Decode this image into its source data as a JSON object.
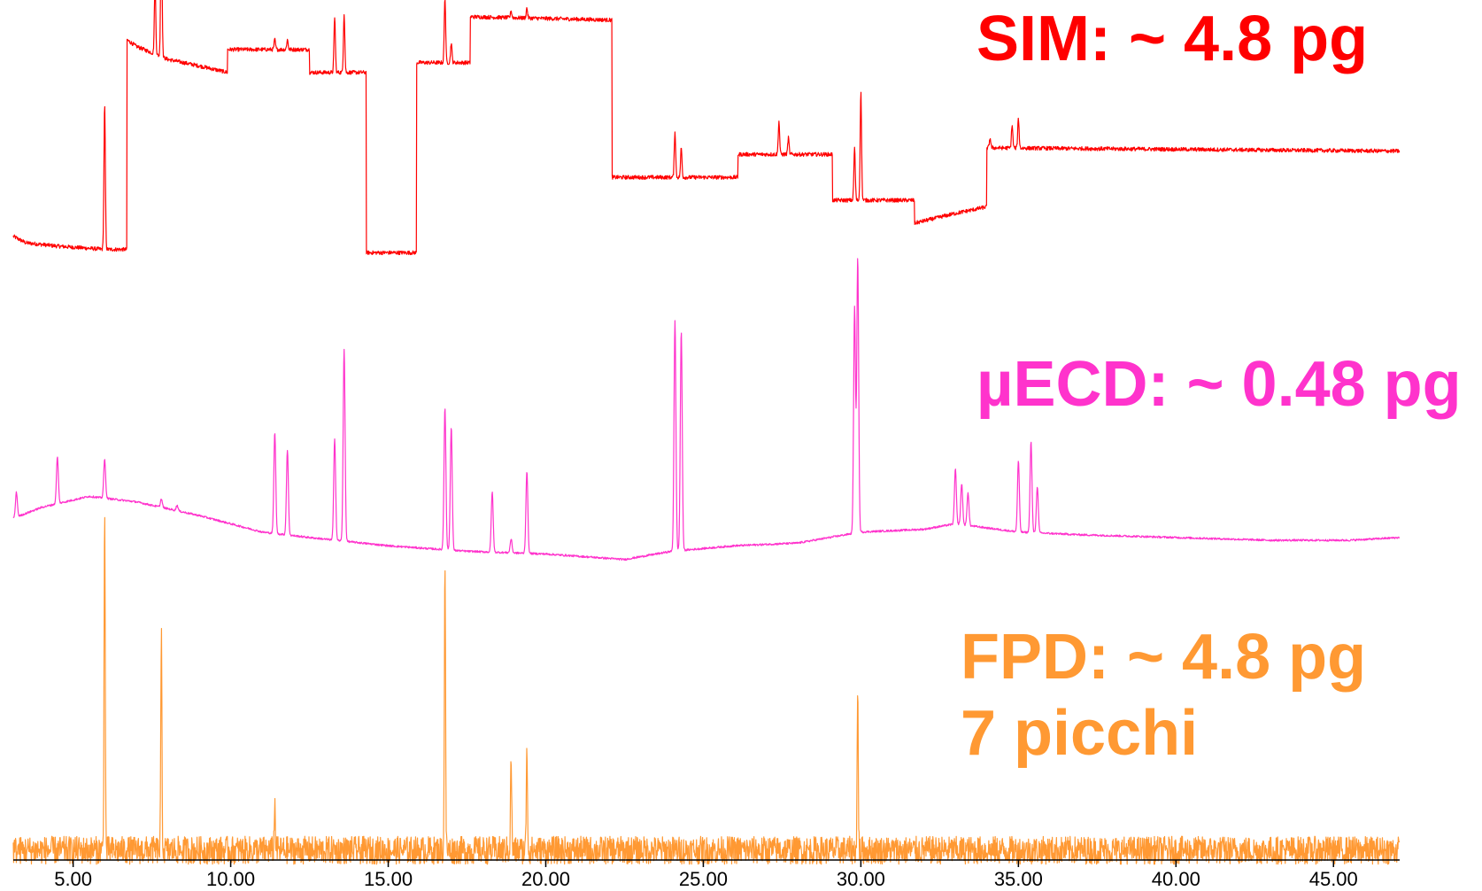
{
  "chart_data": {
    "type": "line",
    "title": "",
    "xlabel": "",
    "ylabel": "",
    "xlim": [
      3.1,
      47.1
    ],
    "x_ticks": [
      "5.00",
      "10.00",
      "15.00",
      "20.00",
      "25.00",
      "30.00",
      "35.00",
      "40.00",
      "45.00"
    ],
    "x_tick_values": [
      5,
      10,
      15,
      20,
      25,
      30,
      35,
      40,
      45
    ],
    "grid": false,
    "colors": {
      "sim": "#ff0000",
      "ecd": "#ff33cc",
      "fpd": "#ff9933"
    },
    "series": [
      {
        "key": "sim",
        "label_text": "SIM: ~ 4.8 pg",
        "baseline_steps": [
          [
            3.1,
            36
          ],
          [
            3.5,
            34
          ],
          [
            4.5,
            33
          ],
          [
            6.0,
            32
          ],
          [
            6.0,
            32
          ],
          [
            6.7,
            32
          ],
          [
            6.7,
            96
          ],
          [
            7.0,
            94
          ],
          [
            8.0,
            90
          ],
          [
            9.0,
            88
          ],
          [
            9.9,
            86
          ],
          [
            9.9,
            93
          ],
          [
            11.5,
            93
          ],
          [
            12.5,
            93
          ],
          [
            12.5,
            86
          ],
          [
            14.3,
            86
          ],
          [
            14.3,
            31
          ],
          [
            15.9,
            31
          ],
          [
            15.9,
            89
          ],
          [
            17.6,
            89
          ],
          [
            17.6,
            103
          ],
          [
            22.1,
            102
          ],
          [
            22.1,
            54
          ],
          [
            26.1,
            54
          ],
          [
            26.1,
            61
          ],
          [
            29.1,
            61
          ],
          [
            29.1,
            47
          ],
          [
            31.7,
            47
          ],
          [
            31.7,
            40
          ],
          [
            33.0,
            43
          ],
          [
            34.0,
            45
          ],
          [
            34.0,
            63
          ],
          [
            47.1,
            62
          ]
        ],
        "peaks": [
          [
            6.0,
            44
          ],
          [
            7.6,
            22
          ],
          [
            7.8,
            44
          ],
          [
            11.4,
            3
          ],
          [
            11.8,
            3
          ],
          [
            13.3,
            17
          ],
          [
            13.6,
            18
          ],
          [
            16.8,
            20
          ],
          [
            17.0,
            6
          ],
          [
            18.9,
            2
          ],
          [
            19.4,
            3
          ],
          [
            24.1,
            14
          ],
          [
            24.3,
            9
          ],
          [
            27.4,
            10
          ],
          [
            27.7,
            5
          ],
          [
            29.8,
            16
          ],
          [
            30.0,
            33
          ],
          [
            34.1,
            3
          ],
          [
            34.8,
            7
          ],
          [
            35.0,
            9
          ]
        ]
      },
      {
        "key": "ecd",
        "label_text": "µECD: ~ 0.48 pg",
        "baseline_knots": [
          [
            3.1,
            8
          ],
          [
            4.0,
            12
          ],
          [
            5.5,
            16
          ],
          [
            7.0,
            14
          ],
          [
            9.0,
            9
          ],
          [
            11.0,
            3
          ],
          [
            12.5,
            1
          ],
          [
            15.0,
            -2
          ],
          [
            17.5,
            -4
          ],
          [
            20.0,
            -5
          ],
          [
            22.5,
            -7
          ],
          [
            24.0,
            -4
          ],
          [
            26.0,
            -2
          ],
          [
            28.0,
            -1
          ],
          [
            30.0,
            3
          ],
          [
            32.0,
            4
          ],
          [
            33.0,
            6
          ],
          [
            35.0,
            3
          ],
          [
            37.0,
            2
          ],
          [
            40.0,
            1
          ],
          [
            43.0,
            0
          ],
          [
            45.5,
            0
          ],
          [
            47.1,
            1
          ]
        ],
        "peaks": [
          [
            3.2,
            9
          ],
          [
            4.5,
            17
          ],
          [
            6.0,
            14
          ],
          [
            7.8,
            3
          ],
          [
            8.3,
            2
          ],
          [
            11.4,
            37
          ],
          [
            11.8,
            31
          ],
          [
            13.3,
            37
          ],
          [
            13.6,
            70
          ],
          [
            16.8,
            52
          ],
          [
            17.0,
            45
          ],
          [
            18.3,
            22
          ],
          [
            18.9,
            5
          ],
          [
            19.4,
            30
          ],
          [
            24.1,
            84
          ],
          [
            24.3,
            80
          ],
          [
            29.8,
            82
          ],
          [
            29.9,
            100
          ],
          [
            33.0,
            20
          ],
          [
            33.2,
            15
          ],
          [
            33.4,
            12
          ],
          [
            35.0,
            26
          ],
          [
            35.4,
            33
          ],
          [
            35.6,
            17
          ]
        ]
      },
      {
        "key": "fpd",
        "label_text": "FPD: ~ 4.8 pg",
        "label_text_2": "7 picchi",
        "baseline": 0,
        "noise_amplitude": 4,
        "peaks": [
          [
            6.0,
            100
          ],
          [
            7.8,
            61
          ],
          [
            11.4,
            13
          ],
          [
            16.8,
            84
          ],
          [
            18.9,
            27
          ],
          [
            19.4,
            31
          ],
          [
            29.9,
            45
          ]
        ]
      }
    ]
  }
}
